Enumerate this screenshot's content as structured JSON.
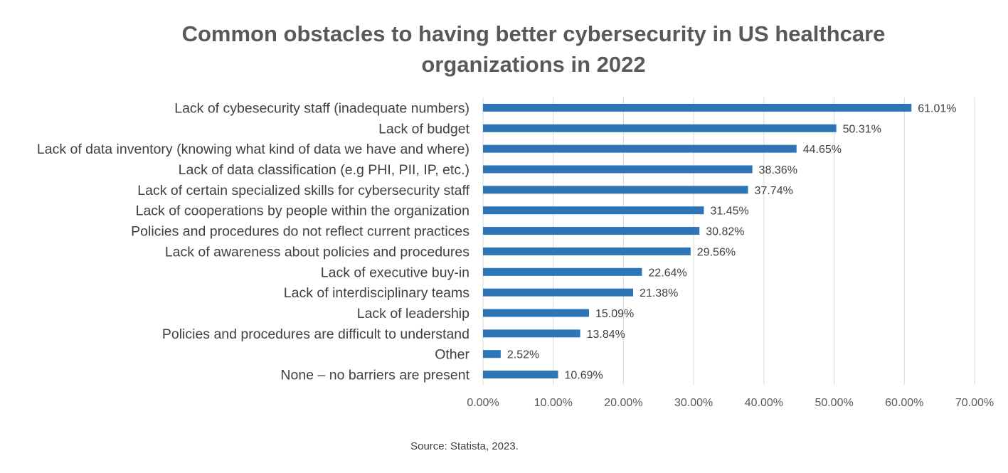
{
  "chart_data": {
    "type": "bar",
    "orientation": "horizontal",
    "title": "Common obstacles to having better cybersecurity in US healthcare organizations in 2022",
    "categories": [
      "Lack of cybesecurity staff (inadequate numbers)",
      "Lack of budget",
      "Lack of data inventory (knowing what kind of data we have and where)",
      "Lack of data classification (e.g PHI, PII, IP, etc.)",
      "Lack of certain specialized skills for cybersecurity staff",
      "Lack of cooperations by people within the organization",
      "Policies and procedures do not reflect current practices",
      "Lack of awareness about policies and procedures",
      "Lack of executive buy-in",
      "Lack of interdisciplinary teams",
      "Lack of leadership",
      "Policies and procedures are difficult to understand",
      "Other",
      "None – no barriers are present"
    ],
    "values": [
      61.01,
      50.31,
      44.65,
      38.36,
      37.74,
      31.45,
      30.82,
      29.56,
      22.64,
      21.38,
      15.09,
      13.84,
      2.52,
      10.69
    ],
    "value_labels": [
      "61.01%",
      "50.31%",
      "44.65%",
      "38.36%",
      "37.74%",
      "31.45%",
      "30.82%",
      "29.56%",
      "22.64%",
      "21.38%",
      "15.09%",
      "13.84%",
      "2.52%",
      "10.69%"
    ],
    "xlim": [
      0,
      70
    ],
    "x_ticks": [
      0,
      10,
      20,
      30,
      40,
      50,
      60,
      70
    ],
    "x_tick_labels": [
      "0.00%",
      "10.00%",
      "20.00%",
      "30.00%",
      "40.00%",
      "50.00%",
      "60.00%",
      "70.00%"
    ],
    "xlabel": "",
    "ylabel": "",
    "grid": "vertical",
    "bar_color": "#2E75B6",
    "grid_color": "#D9D9D9"
  },
  "source": "Source: Statista, 2023."
}
